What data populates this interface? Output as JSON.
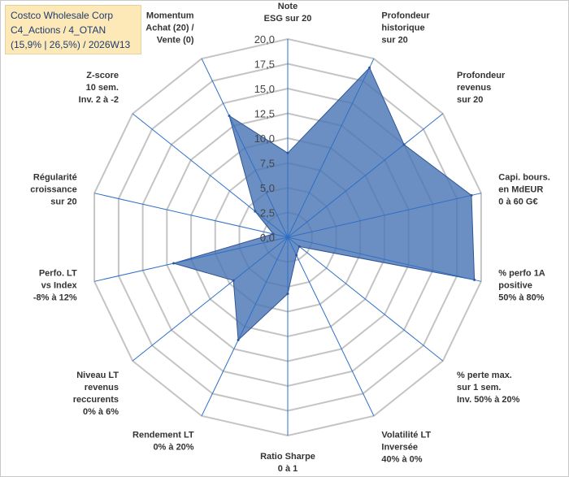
{
  "title": {
    "line1": "Costco Wholesale Corp",
    "line2": "C4_Actions / 4_OTAN",
    "line3": "(15,9% | 26,5%) / 2026W13"
  },
  "colors": {
    "fill": "#4a76b4",
    "stroke": "#2f5597",
    "grid": "#c4c4c4",
    "axis": "#2f6fc6",
    "title_bg": "#fde9b8",
    "title_text": "#1f3b70"
  },
  "chart_data": {
    "type": "radar",
    "range": [
      0,
      20
    ],
    "tick_step": 2.5,
    "ticks": [
      "0,0",
      "2,5",
      "5,0",
      "7,5",
      "10,0",
      "12,5",
      "15,0",
      "17,5",
      "20,0"
    ],
    "axes": [
      {
        "label": [
          "Note",
          "ESG sur 20"
        ],
        "value": 8.5
      },
      {
        "label": [
          "Profondeur",
          "historique",
          "sur 20"
        ],
        "value": 19.0
      },
      {
        "label": [
          "Profondeur",
          "revenus",
          "sur 20"
        ],
        "value": 15.0
      },
      {
        "label": [
          "Capi. bours.",
          "en MdEUR",
          "0 à 60 G€"
        ],
        "value": 19.0
      },
      {
        "label": [
          "% perfo 1A",
          "positive",
          "50% à 80%"
        ],
        "value": 19.3
      },
      {
        "label": [
          "% perte max.",
          "sur 1 sem.",
          "Inv. 50% à 20%"
        ],
        "value": 1.5
      },
      {
        "label": [
          "Volatilité LT",
          "Inversée",
          "40% à 0%"
        ],
        "value": 2.0
      },
      {
        "label": [
          "Ratio Sharpe",
          "0 à 1"
        ],
        "value": 5.7
      },
      {
        "label": [
          "Rendement LT",
          "0% à 20%"
        ],
        "value": 11.5
      },
      {
        "label": [
          "Niveau LT",
          "revenus",
          "reccurents",
          "0% à 6%"
        ],
        "value": 7.0
      },
      {
        "label": [
          "Perfo. LT",
          "vs Index",
          "-8% à 12%"
        ],
        "value": 11.8
      },
      {
        "label": [
          "Régularité",
          "croissance",
          "sur 20"
        ],
        "value": 1.5
      },
      {
        "label": [
          "Z-score",
          "10 sem.",
          "Inv. 2 à -2"
        ],
        "value": 4.2
      },
      {
        "label": [
          "Momentum",
          "Achat (20) /",
          "Vente (0)"
        ],
        "value": 13.6
      }
    ]
  }
}
